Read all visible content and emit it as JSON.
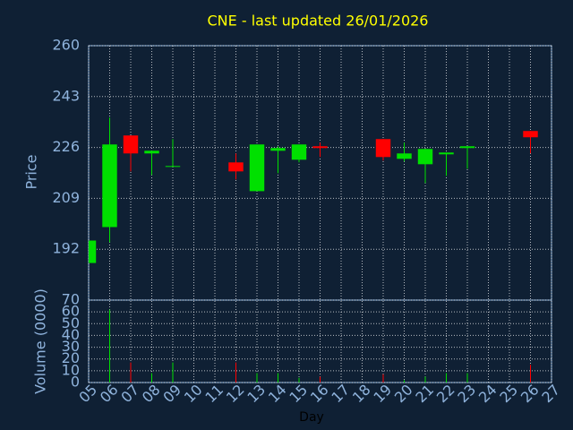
{
  "chart_data": {
    "type": "candlestick",
    "title": "CNE - last updated 26/01/2026",
    "xlabel": "Day",
    "ylabel": "Price",
    "volume_label": "Volume (0000)",
    "x": [
      5,
      6,
      7,
      8,
      9,
      12,
      13,
      14,
      15,
      16,
      19,
      20,
      21,
      22,
      23,
      26
    ],
    "open": [
      187.4,
      199.4,
      230.0,
      224.0,
      219.5,
      221.0,
      211.4,
      224.9,
      221.9,
      226.4,
      228.8,
      222.2,
      220.4,
      223.7,
      225.8,
      231.5
    ],
    "high": [
      194.9,
      236.0,
      230.0,
      224.9,
      228.8,
      224.0,
      227.0,
      226.4,
      227.0,
      227.6,
      228.8,
      227.6,
      225.5,
      224.3,
      226.4,
      231.5
    ],
    "low": [
      187.4,
      194.3,
      218.0,
      216.8,
      219.5,
      215.3,
      211.4,
      217.4,
      221.0,
      222.8,
      221.6,
      221.3,
      214.1,
      216.5,
      218.9,
      224.0
    ],
    "close": [
      194.9,
      227.0,
      224.0,
      224.9,
      219.8,
      218.0,
      227.0,
      225.8,
      227.0,
      225.8,
      222.8,
      224.0,
      225.5,
      224.3,
      226.4,
      229.4
    ],
    "volume": [
      0,
      62,
      17,
      8,
      17,
      17,
      8,
      8,
      4,
      5,
      7,
      2,
      5,
      8,
      8,
      15
    ],
    "up_color": "#00e000",
    "down_color": "#ff0000",
    "title_color": "#ffff00",
    "xlim": [
      5,
      27
    ],
    "xticks": [
      {
        "value": 5,
        "label": "05"
      },
      {
        "value": 6,
        "label": "06"
      },
      {
        "value": 7,
        "label": "07"
      },
      {
        "value": 8,
        "label": "08"
      },
      {
        "value": 9,
        "label": "09"
      },
      10,
      11,
      12,
      13,
      14,
      15,
      16,
      17,
      18,
      19,
      20,
      21,
      22,
      23,
      24,
      25,
      26,
      27
    ],
    "ylim": [
      175,
      260
    ],
    "yticks": [
      192,
      209,
      226,
      243,
      260
    ],
    "vlim": [
      0,
      70
    ],
    "vticks": [
      0,
      10,
      20,
      30,
      40,
      50,
      60,
      70
    ],
    "grid": true
  }
}
